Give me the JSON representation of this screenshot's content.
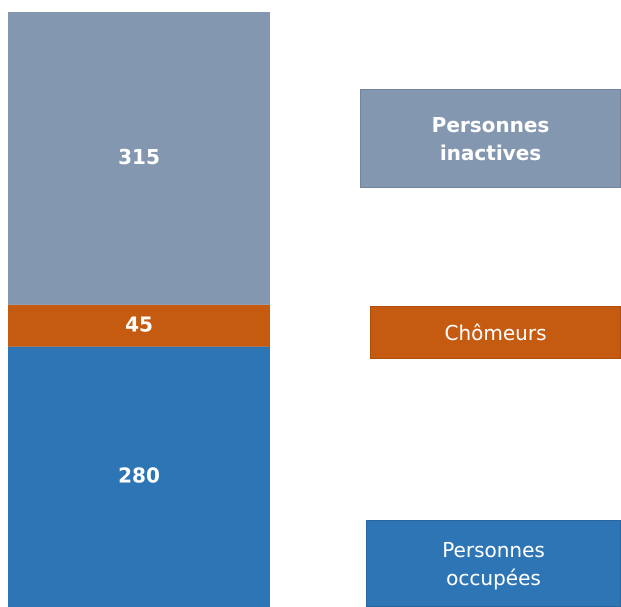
{
  "chart_data": {
    "type": "bar",
    "stacked": true,
    "categories": [
      null
    ],
    "series": [
      {
        "name": "Personnes occupées",
        "color": "#2e75b6",
        "values": [
          280
        ]
      },
      {
        "name": "Chômeurs",
        "color": "#c55a11",
        "values": [
          45
        ]
      },
      {
        "name": "Personnes inactives",
        "color": "#8497b0",
        "values": [
          315
        ]
      }
    ]
  }
}
